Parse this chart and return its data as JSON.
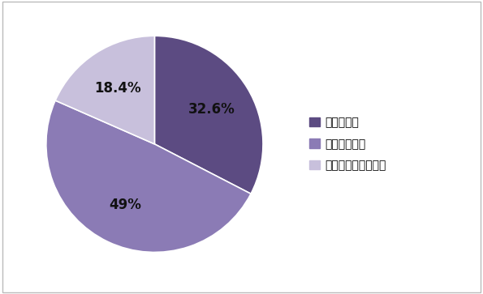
{
  "slices": [
    32.6,
    49.0,
    18.4
  ],
  "labels": [
    "32.6%",
    "49%",
    "18.4%"
  ],
  "legend_labels": [
    "知っていた",
    "知らなかった",
    "考えた事も無かった"
  ],
  "colors": [
    "#5c4b82",
    "#8b7bb5",
    "#c8c0dc"
  ],
  "start_angle": 90,
  "background_color": "#ffffff",
  "label_fontsize": 12,
  "legend_fontsize": 10,
  "border_color": "#bbbbbb",
  "edge_color": "#ffffff",
  "label_color": "#111111"
}
